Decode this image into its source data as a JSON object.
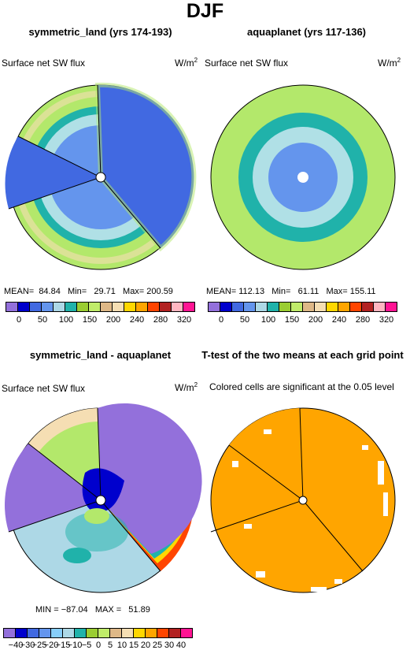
{
  "title": "DJF",
  "panels": {
    "p1": {
      "title": "symmetric_land (yrs 174-193)",
      "var": "Surface net SW flux",
      "units": "W/m",
      "units_sup": "2",
      "stats": "MEAN=  84.84   Min=   29.71   Max= 200.59"
    },
    "p2": {
      "title": "aquaplanet (yrs 117-136)",
      "var": "Surface net SW flux",
      "units": "W/m",
      "units_sup": "2",
      "stats": "MEAN= 112.13   Min=   61.11   Max= 155.11"
    },
    "p3": {
      "title": "symmetric_land - aquaplanet",
      "var": "Surface net SW flux",
      "units": "W/m",
      "units_sup": "2",
      "stats": "MIN = −87.04   MAX =   51.89"
    },
    "p4": {
      "title": "T-test of the two means at each grid point",
      "subtitle": "Colored cells are significant at the 0.05 level"
    }
  },
  "colorbar_top": {
    "colors": [
      "#9370db",
      "#0000cd",
      "#4169e1",
      "#6495ed",
      "#add8e6",
      "#20b2aa",
      "#9acd32",
      "#c0ec6a",
      "#deb887",
      "#f5deb3",
      "#ffd700",
      "#ffa500",
      "#ff4500",
      "#b22222",
      "#ffb6c1",
      "#ff1493"
    ],
    "labels": [
      "0",
      "50",
      "100",
      "150",
      "200",
      "240",
      "280",
      "320"
    ]
  },
  "colorbar_diff": {
    "colors": [
      "#9370db",
      "#0000cd",
      "#4169e1",
      "#6495ed",
      "#87cefa",
      "#add8e6",
      "#20b2aa",
      "#9acd32",
      "#c0ec6a",
      "#deb887",
      "#f5deb3",
      "#ffd700",
      "#ffa500",
      "#ff4500",
      "#b22222",
      "#ff1493"
    ],
    "labels": [
      "−40",
      "−30",
      "−25",
      "−20",
      "−15",
      "−10",
      "−5",
      "0",
      "5",
      "10",
      "15",
      "20",
      "25",
      "30",
      "40"
    ]
  },
  "colors": {
    "sig": "#ffa500",
    "green": "#b3e86b",
    "teal": "#20b2aa",
    "lightblue": "#b0e0e6",
    "blue": "#6495ed",
    "deep": "#4169e1",
    "purple": "#9370db"
  }
}
